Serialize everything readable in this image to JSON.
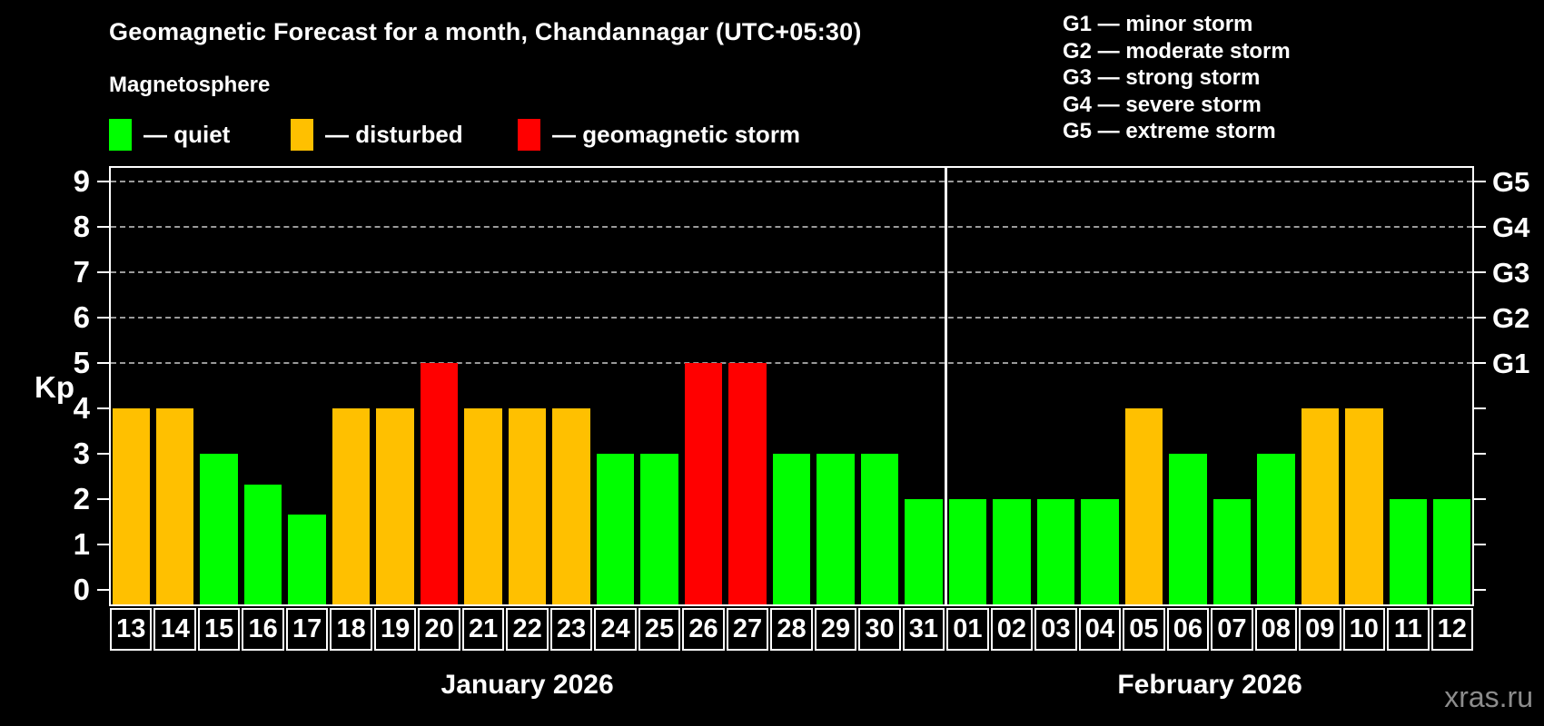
{
  "title": "Geomagnetic Forecast for a month, Chandannagar (UTC+05:30)",
  "subtitle": "Magnetosphere",
  "legend": {
    "items": [
      {
        "key": "quiet",
        "label": "— quiet"
      },
      {
        "key": "disturbed",
        "label": "— disturbed"
      },
      {
        "key": "storm",
        "label": "— geomagnetic storm"
      }
    ]
  },
  "g_legend": [
    "G1 — minor storm",
    "G2 — moderate storm",
    "G3 — strong storm",
    "G4 — severe storm",
    "G5 — extreme storm"
  ],
  "watermark": "xras.ru",
  "chart_data": {
    "type": "bar",
    "title": "Geomagnetic Forecast for a month, Chandannagar (UTC+05:30)",
    "ylabel": "Kp",
    "ylim": [
      0,
      9
    ],
    "y_ticks": [
      0,
      1,
      2,
      3,
      4,
      5,
      6,
      7,
      8,
      9
    ],
    "grid_levels": [
      5,
      6,
      7,
      8,
      9
    ],
    "grid_on": true,
    "g_scale": [
      {
        "label": "G1",
        "kp": 5
      },
      {
        "label": "G2",
        "kp": 6
      },
      {
        "label": "G3",
        "kp": 7
      },
      {
        "label": "G4",
        "kp": 8
      },
      {
        "label": "G5",
        "kp": 9
      }
    ],
    "colors": {
      "quiet": "#00FF00",
      "disturbed": "#FFC000",
      "storm": "#FF0000",
      "grid": "#9A9A9A"
    },
    "months": [
      {
        "label": "January 2026",
        "days": 19
      },
      {
        "label": "February 2026",
        "days": 12
      }
    ],
    "days": [
      {
        "date": "13",
        "kp": 4,
        "status": "disturbed"
      },
      {
        "date": "14",
        "kp": 4,
        "status": "disturbed"
      },
      {
        "date": "15",
        "kp": 3,
        "status": "quiet"
      },
      {
        "date": "16",
        "kp": 2.33,
        "status": "quiet"
      },
      {
        "date": "17",
        "kp": 1.67,
        "status": "quiet"
      },
      {
        "date": "18",
        "kp": 4,
        "status": "disturbed"
      },
      {
        "date": "19",
        "kp": 4,
        "status": "disturbed"
      },
      {
        "date": "20",
        "kp": 5,
        "status": "storm"
      },
      {
        "date": "21",
        "kp": 4,
        "status": "disturbed"
      },
      {
        "date": "22",
        "kp": 4,
        "status": "disturbed"
      },
      {
        "date": "23",
        "kp": 4,
        "status": "disturbed"
      },
      {
        "date": "24",
        "kp": 3,
        "status": "quiet"
      },
      {
        "date": "25",
        "kp": 3,
        "status": "quiet"
      },
      {
        "date": "26",
        "kp": 5,
        "status": "storm"
      },
      {
        "date": "27",
        "kp": 5,
        "status": "storm"
      },
      {
        "date": "28",
        "kp": 3,
        "status": "quiet"
      },
      {
        "date": "29",
        "kp": 3,
        "status": "quiet"
      },
      {
        "date": "30",
        "kp": 3,
        "status": "quiet"
      },
      {
        "date": "31",
        "kp": 2,
        "status": "quiet"
      },
      {
        "date": "01",
        "kp": 2,
        "status": "quiet"
      },
      {
        "date": "02",
        "kp": 2,
        "status": "quiet"
      },
      {
        "date": "03",
        "kp": 2,
        "status": "quiet"
      },
      {
        "date": "04",
        "kp": 2,
        "status": "quiet"
      },
      {
        "date": "05",
        "kp": 4,
        "status": "disturbed"
      },
      {
        "date": "06",
        "kp": 3,
        "status": "quiet"
      },
      {
        "date": "07",
        "kp": 2,
        "status": "quiet"
      },
      {
        "date": "08",
        "kp": 3,
        "status": "quiet"
      },
      {
        "date": "09",
        "kp": 4,
        "status": "disturbed"
      },
      {
        "date": "10",
        "kp": 4,
        "status": "disturbed"
      },
      {
        "date": "11",
        "kp": 2,
        "status": "quiet"
      },
      {
        "date": "12",
        "kp": 2,
        "status": "quiet"
      }
    ]
  }
}
